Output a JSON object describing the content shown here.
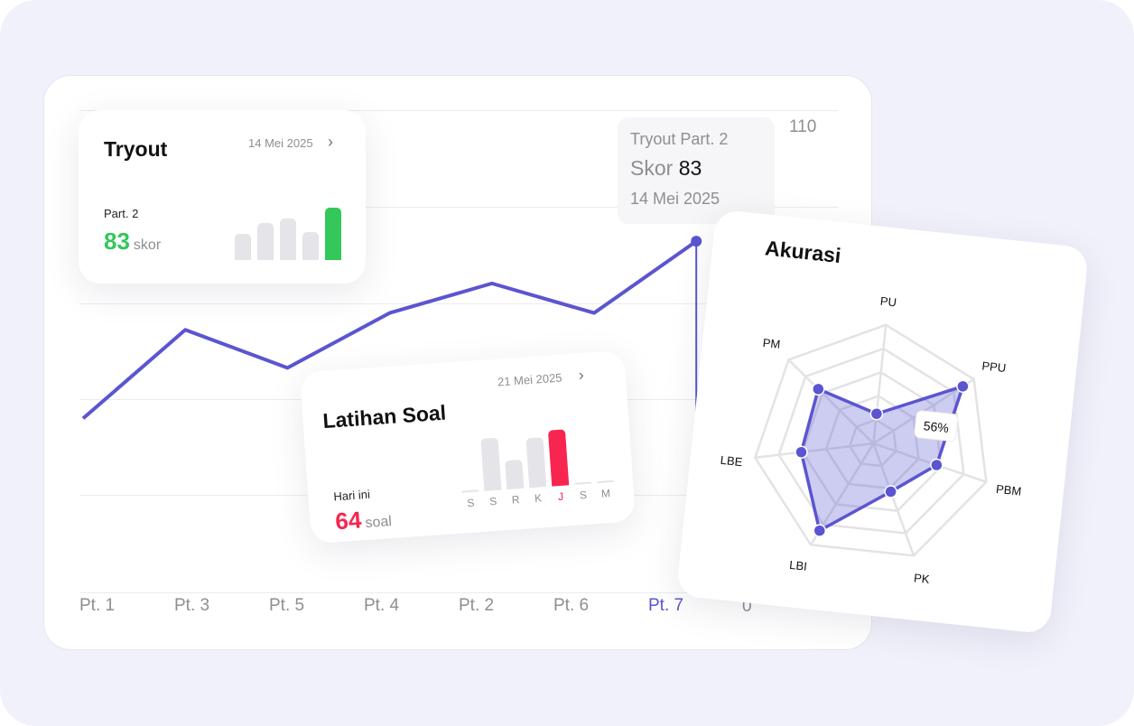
{
  "main_chart": {
    "type": "line",
    "categories": [
      "Pt. 1",
      "Pt. 3",
      "Pt. 5",
      "Pt. 4",
      "Pt. 2",
      "Pt. 6",
      "Pt. 7"
    ],
    "values": [
      41,
      62,
      53,
      66,
      73,
      66,
      83
    ],
    "highlighted": "Pt. 7",
    "y_ticks": [
      "110",
      "0"
    ],
    "ylim": [
      0,
      110
    ],
    "line_color": "#5b55d1",
    "tooltip": {
      "title": "Tryout Part. 2",
      "score_label": "Skor",
      "score": "83",
      "date": "14 Mei 2025"
    }
  },
  "tryout": {
    "title": "Tryout",
    "date": "14 Mei 2025",
    "chevron": "chevron-right-icon",
    "label": "Part. 2",
    "value": "83",
    "unit": "skor",
    "accent": "#34c759",
    "bars": [
      41,
      59,
      66,
      44,
      83
    ]
  },
  "latihan": {
    "title": "Latihan Soal",
    "date": "21 Mei 2025",
    "chevron": "chevron-right-icon",
    "label": "Hari ini",
    "value": "64",
    "unit": "soal",
    "accent": "#f7254f",
    "days": [
      "S",
      "S",
      "R",
      "K",
      "J",
      "S",
      "M"
    ],
    "bars": [
      0,
      60,
      33,
      57,
      64,
      0,
      0
    ],
    "active_day": 4
  },
  "chart_data": {
    "type": "radar",
    "title": "Akurasi",
    "axes": [
      "PU",
      "PPU",
      "PBM",
      "PK",
      "LBI",
      "LBE",
      "PM"
    ],
    "values": [
      25,
      89,
      56,
      43,
      86,
      61,
      65
    ],
    "range": [
      0,
      100
    ],
    "tooltip": {
      "axis": "PBM",
      "label": "56%"
    },
    "color": "#5b55d1"
  }
}
